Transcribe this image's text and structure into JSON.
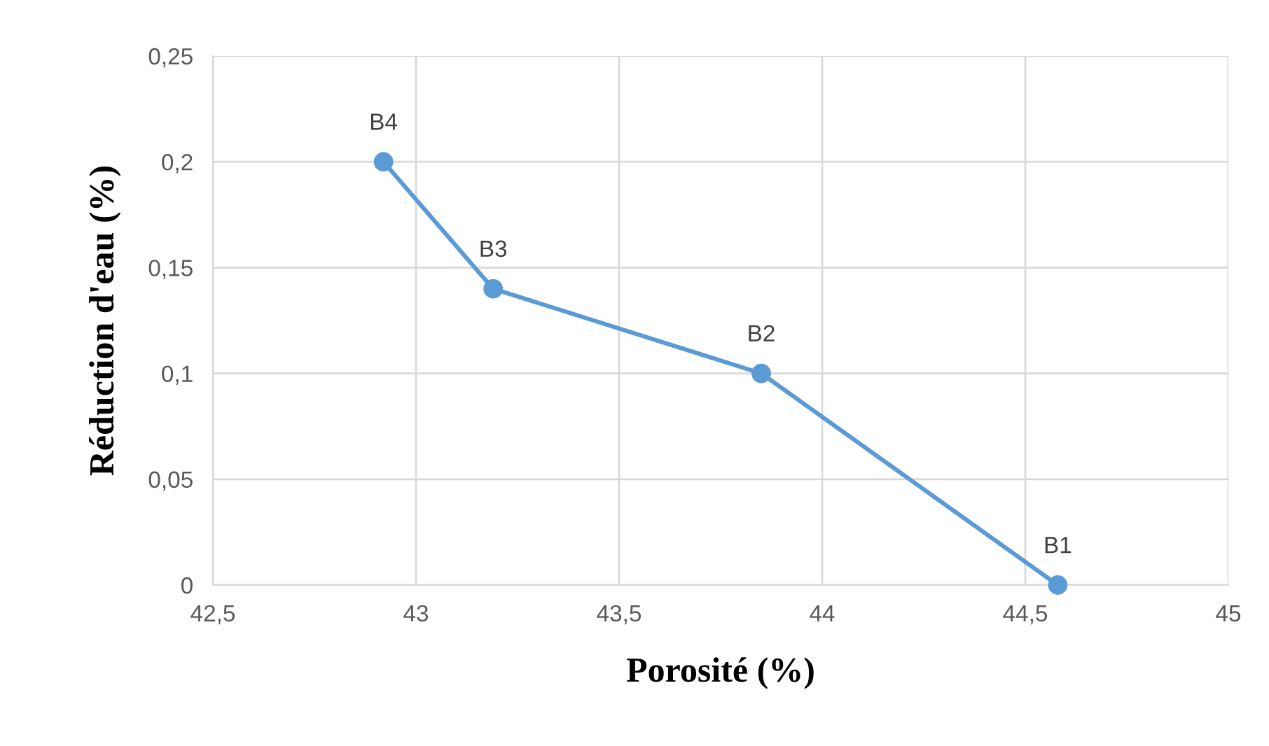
{
  "chart_data": {
    "type": "line",
    "xlabel": "Porosité (%)",
    "ylabel": "Réduction d'eau (%)",
    "x": [
      42.92,
      43.19,
      43.85,
      44.58
    ],
    "series": [
      {
        "color": "#5b9bd5",
        "values": [
          0.2,
          0.14,
          0.1,
          0
        ]
      }
    ],
    "annotations": [
      {
        "text": "B4",
        "x": 42.92,
        "y": 0.2
      },
      {
        "text": "B3",
        "x": 43.19,
        "y": 0.14
      },
      {
        "text": "B2",
        "x": 43.85,
        "y": 0.1
      },
      {
        "text": "B1",
        "x": 44.58,
        "y": 0
      }
    ],
    "xlim": [
      42.5,
      45
    ],
    "xticks": [
      {
        "value": 42.5,
        "label": "42,5"
      },
      43,
      {
        "value": 43.5,
        "label": "43,5"
      },
      44,
      {
        "value": 44.5,
        "label": "44,5"
      },
      45
    ],
    "ylim": [
      0,
      0.25
    ],
    "yticks": [
      0,
      {
        "value": 0.05,
        "label": "0,05"
      },
      {
        "value": 0.1,
        "label": "0,1"
      },
      {
        "value": 0.15,
        "label": "0,15"
      },
      {
        "value": 0.2,
        "label": "0,2"
      },
      {
        "value": 0.25,
        "label": "0,25"
      }
    ],
    "grid": true,
    "marker": "circle",
    "line_style": "solid"
  }
}
